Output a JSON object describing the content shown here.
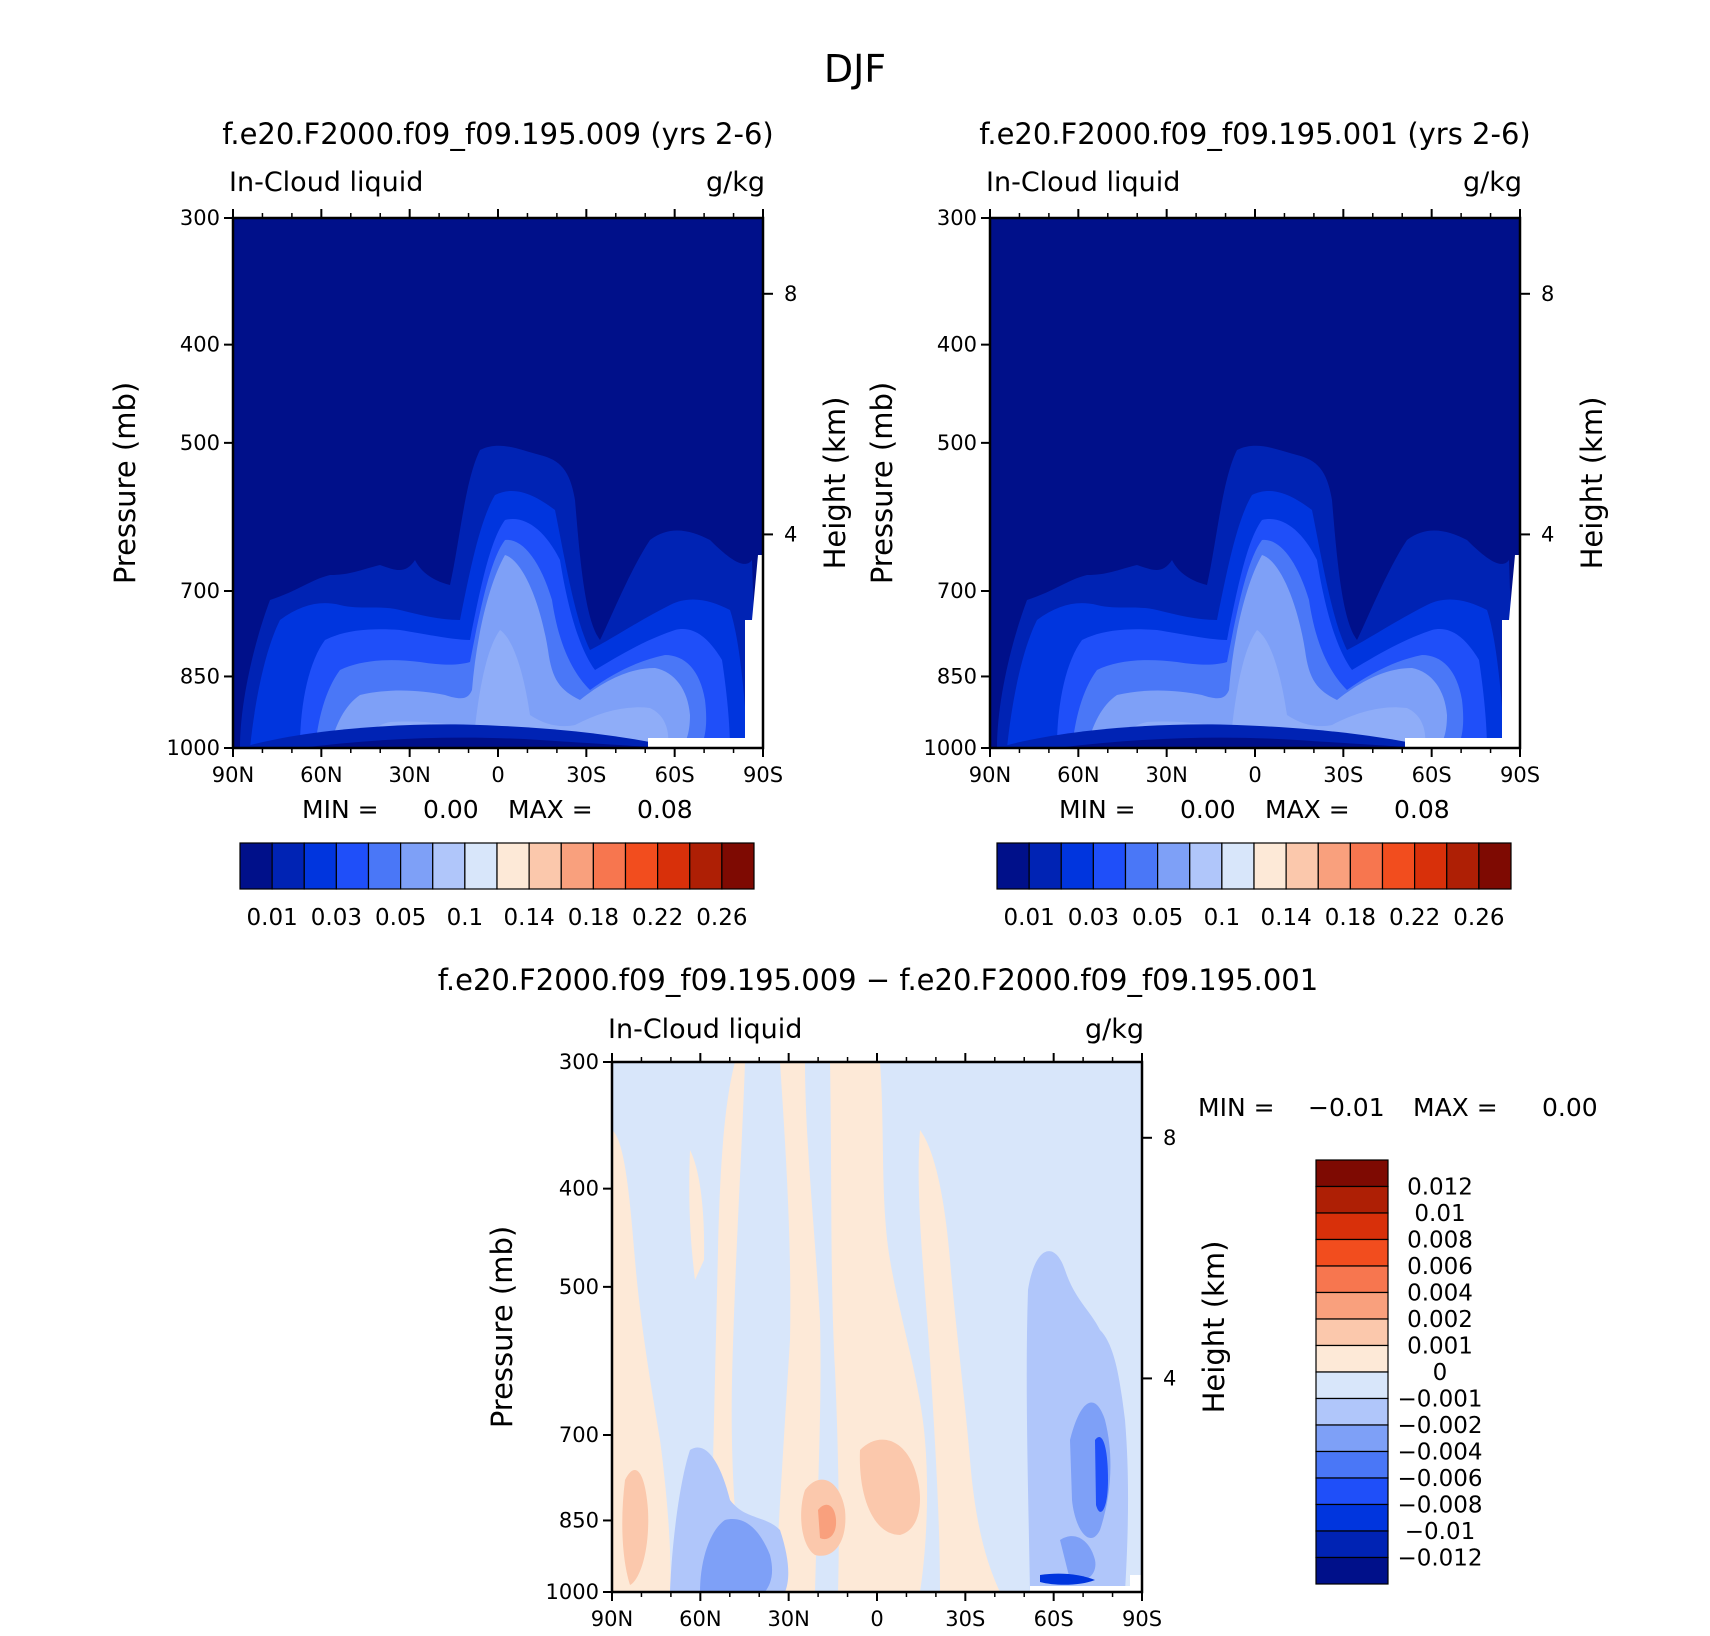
{
  "figure_title": "DJF",
  "colors": {
    "bg_deep": "#00108a",
    "cb_seq": [
      "#00108a",
      "#0023b4",
      "#0035de",
      "#1f4ff9",
      "#4a77f7",
      "#7ea0f7",
      "#b0c6fa",
      "#d8e6fa",
      "#fde9d7",
      "#fbc8ac",
      "#f9a07d",
      "#f7764f",
      "#f24d1e",
      "#d8300a",
      "#ae1f05",
      "#7e0a02"
    ],
    "cb_div": [
      "#00108a",
      "#0023b4",
      "#0035de",
      "#1f4ff9",
      "#4a77f7",
      "#7ea0f7",
      "#b0c6fa",
      "#d8e6fa",
      "#fde9d7",
      "#fbc8ac",
      "#f9a07d",
      "#f7764f",
      "#f24d1e",
      "#d8300a",
      "#ae1f05",
      "#7e0a02"
    ]
  },
  "chart_data": [
    {
      "type": "heatmap",
      "title": "f.e20.F2000.f09_f09.195.009 (yrs 2-6)",
      "left_label": "In-Cloud liquid",
      "right_label": "g/kg",
      "ylabel": "Pressure (mb)",
      "ylabel_right": "Height (km)",
      "x_ticks": [
        "90N",
        "60N",
        "30N",
        "0",
        "30S",
        "60S",
        "90S"
      ],
      "y_ticks": [
        "300",
        "400",
        "500",
        "700",
        "850",
        "1000"
      ],
      "y_tick_values": [
        300,
        400,
        500,
        700,
        850,
        1000
      ],
      "right_ticks": [
        "8",
        "4"
      ],
      "min_label": "MIN =",
      "min_value": "0.00",
      "max_label": "MAX =",
      "max_value": "0.08",
      "colorbar_labels": [
        "0.01",
        "0.03",
        "0.05",
        "0.1",
        "0.14",
        "0.18",
        "0.22",
        "0.26"
      ]
    },
    {
      "type": "heatmap",
      "title": "f.e20.F2000.f09_f09.195.001 (yrs 2-6)",
      "left_label": "In-Cloud liquid",
      "right_label": "g/kg",
      "ylabel": "Pressure (mb)",
      "ylabel_right": "Height (km)",
      "x_ticks": [
        "90N",
        "60N",
        "30N",
        "0",
        "30S",
        "60S",
        "90S"
      ],
      "y_ticks": [
        "300",
        "400",
        "500",
        "700",
        "850",
        "1000"
      ],
      "y_tick_values": [
        300,
        400,
        500,
        700,
        850,
        1000
      ],
      "right_ticks": [
        "8",
        "4"
      ],
      "min_label": "MIN =",
      "min_value": "0.00",
      "max_label": "MAX =",
      "max_value": "0.08",
      "colorbar_labels": [
        "0.01",
        "0.03",
        "0.05",
        "0.1",
        "0.14",
        "0.18",
        "0.22",
        "0.26"
      ]
    },
    {
      "type": "heatmap",
      "title": "f.e20.F2000.f09_f09.195.009 − f.e20.F2000.f09_f09.195.001",
      "left_label": "In-Cloud liquid",
      "right_label": "g/kg",
      "ylabel": "Pressure (mb)",
      "ylabel_right": "Height (km)",
      "x_ticks": [
        "90N",
        "60N",
        "30N",
        "0",
        "30S",
        "60S",
        "90S"
      ],
      "y_ticks": [
        "300",
        "400",
        "500",
        "700",
        "850",
        "1000"
      ],
      "y_tick_values": [
        300,
        400,
        500,
        700,
        850,
        1000
      ],
      "right_ticks": [
        "8",
        "4"
      ],
      "min_label": "MIN =",
      "min_value": "−0.01",
      "max_label": "MAX =",
      "max_value": "0.00",
      "colorbar_labels": [
        "0.012",
        "0.01",
        "0.008",
        "0.006",
        "0.004",
        "0.002",
        "0.001",
        "0",
        "−0.001",
        "−0.002",
        "−0.004",
        "−0.006",
        "−0.008",
        "−0.01",
        "−0.012"
      ]
    }
  ]
}
